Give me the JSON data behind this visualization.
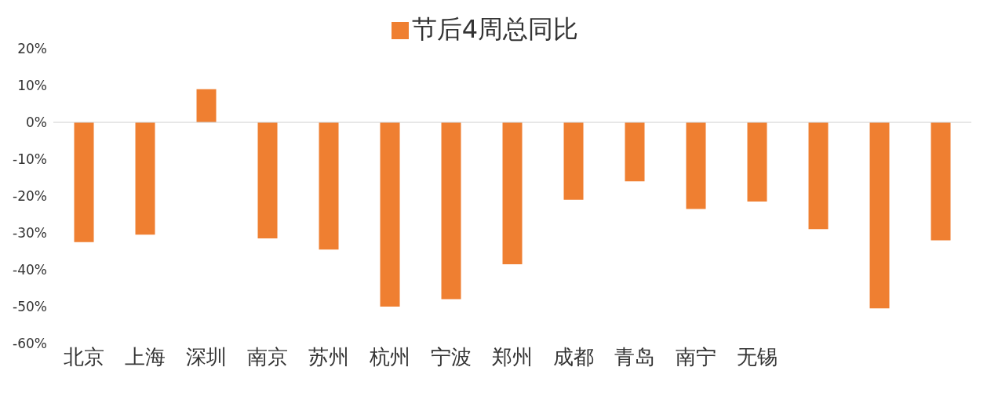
{
  "chart_data": {
    "type": "bar",
    "categories": [
      "北京",
      "上海",
      "深圳",
      "南京",
      "苏州",
      "杭州",
      "宁波",
      "郑州",
      "成都",
      "青岛",
      "南宁",
      "无锡",
      null,
      null,
      null
    ],
    "series": [
      {
        "name": "节后4周总同比",
        "color": "#ef7f31",
        "values": [
          -32.5,
          -30.5,
          9,
          -31.5,
          -34.5,
          -50,
          -48,
          -38.5,
          -21,
          -16,
          -23.5,
          -21.5,
          -29,
          -50.5,
          -32
        ]
      }
    ],
    "ylim": [
      -60,
      20
    ],
    "yticks": [
      {
        "value": -60,
        "label": "-60%"
      },
      {
        "value": -50,
        "label": "-50%"
      },
      {
        "value": -40,
        "label": "-40%"
      },
      {
        "value": -30,
        "label": "-30%"
      },
      {
        "value": -20,
        "label": "-20%"
      },
      {
        "value": -10,
        "label": "-10%"
      },
      {
        "value": 0,
        "label": "0%"
      },
      {
        "value": 10,
        "label": "10%"
      },
      {
        "value": 20,
        "label": "20%"
      }
    ],
    "ref_lines": [
      {
        "axis": "y",
        "value": 0,
        "color": "#d0d0d0"
      }
    ],
    "grid": false,
    "legend": "top"
  }
}
